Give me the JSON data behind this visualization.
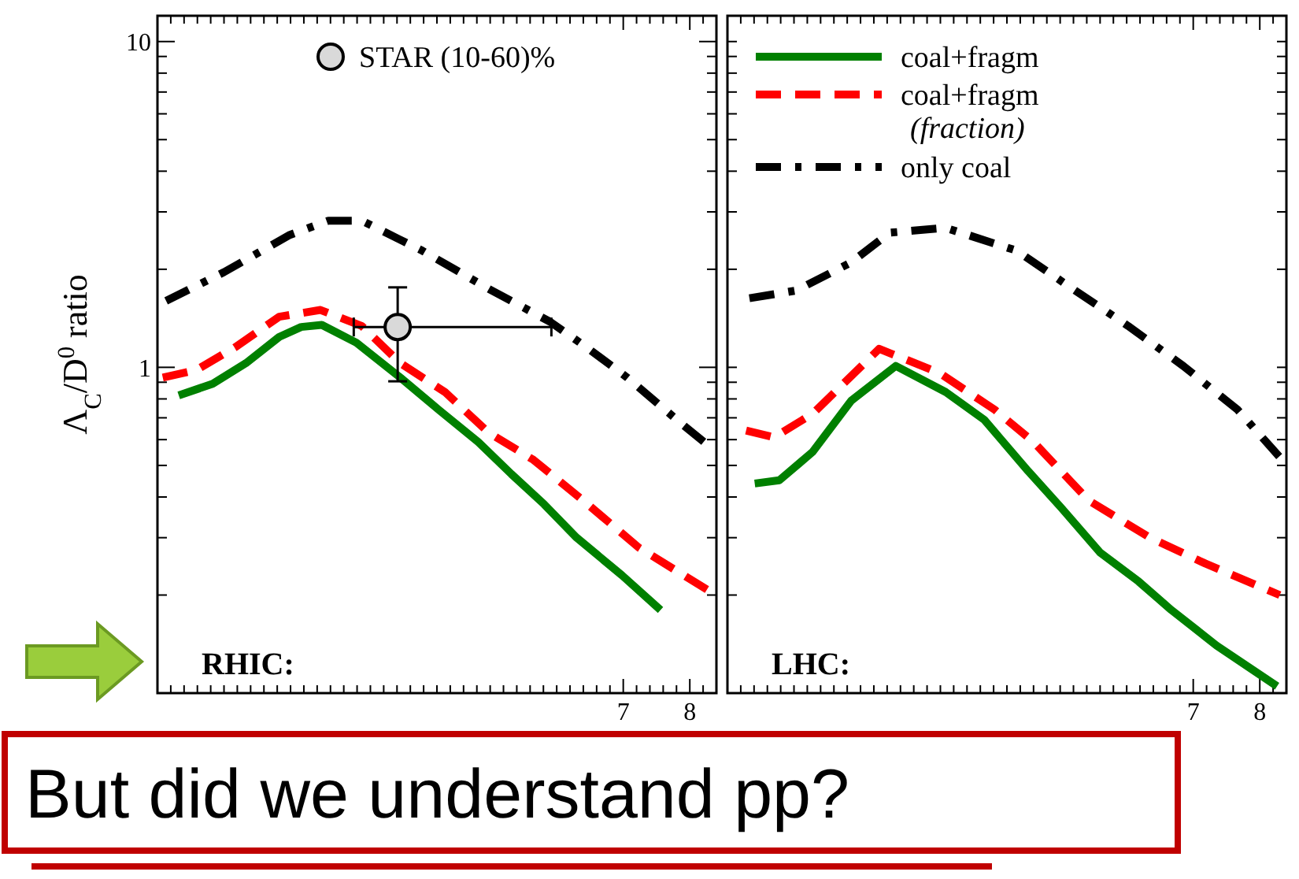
{
  "chart_data": [
    {
      "type": "line",
      "ylabel": "Λ$_{C}$/D$^{0}$ ratio",
      "xlim": [
        0,
        8.4
      ],
      "ylim": [
        0.1,
        12
      ],
      "log": "y",
      "legend": "top",
      "xticks": [
        {
          "value": 0,
          "label": null
        },
        {
          "value": 0.2,
          "label": null
        },
        {
          "value": 0.4,
          "label": null
        },
        {
          "value": 0.6,
          "label": null
        },
        {
          "value": 0.8,
          "label": null
        },
        {
          "value": 1,
          "label": null
        },
        {
          "value": 1.2,
          "label": null
        },
        {
          "value": 1.4,
          "label": null
        },
        {
          "value": 1.6,
          "label": null
        },
        {
          "value": 1.8,
          "label": null
        },
        {
          "value": 2,
          "label": null
        },
        {
          "value": 2.2,
          "label": null
        },
        {
          "value": 2.4,
          "label": null
        },
        {
          "value": 2.6,
          "label": null
        },
        {
          "value": 2.8,
          "label": null
        },
        {
          "value": 3,
          "label": null
        },
        {
          "value": 3.2,
          "label": null
        },
        {
          "value": 3.4,
          "label": null
        },
        {
          "value": 3.6,
          "label": null
        },
        {
          "value": 3.8,
          "label": null
        },
        {
          "value": 4,
          "label": null
        },
        {
          "value": 4.2,
          "label": null
        },
        {
          "value": 4.4,
          "label": null
        },
        {
          "value": 4.6,
          "label": null
        },
        {
          "value": 4.8,
          "label": null
        },
        {
          "value": 5,
          "label": null
        },
        {
          "value": 5.2,
          "label": null
        },
        {
          "value": 5.4,
          "label": null
        },
        {
          "value": 5.6,
          "label": null
        },
        {
          "value": 5.8,
          "label": null
        },
        {
          "value": 6,
          "label": null
        },
        {
          "value": 6.2,
          "label": null
        },
        {
          "value": 6.4,
          "label": null
        },
        {
          "value": 6.6,
          "label": null
        },
        {
          "value": 6.8,
          "label": null
        },
        {
          "value": 7,
          "label": "7"
        },
        {
          "value": 7.2,
          "label": null
        },
        {
          "value": 7.4,
          "label": null
        },
        {
          "value": 7.6,
          "label": null
        },
        {
          "value": 7.8,
          "label": null
        },
        {
          "value": 8,
          "label": "8"
        },
        {
          "value": 8.2,
          "label": null
        }
      ],
      "yticks": [
        {
          "value": 0.1,
          "label": null
        },
        {
          "value": 0.2,
          "label": null
        },
        {
          "value": 0.3,
          "label": null
        },
        {
          "value": 0.4,
          "label": null
        },
        {
          "value": 0.5,
          "label": null
        },
        {
          "value": 0.6,
          "label": null
        },
        {
          "value": 0.7,
          "label": null
        },
        {
          "value": 0.8,
          "label": null
        },
        {
          "value": 0.9,
          "label": null
        },
        1,
        {
          "value": 2,
          "label": null
        },
        {
          "value": 3,
          "label": null
        },
        {
          "value": 4,
          "label": null
        },
        {
          "value": 5,
          "label": null
        },
        {
          "value": 6,
          "label": null
        },
        {
          "value": 7,
          "label": null
        },
        {
          "value": 8,
          "label": null
        },
        {
          "value": 9,
          "label": null
        },
        10
      ],
      "series": [
        {
          "color": "#008000",
          "line_style": "solid",
          "x": [
            0.32,
            0.83,
            1.33,
            1.83,
            2.16,
            2.47,
            2.99,
            3.65,
            4.23,
            4.82,
            5.32,
            5.81,
            6.3,
            6.98,
            7.56
          ],
          "values": [
            0.82,
            0.89,
            1.03,
            1.24,
            1.33,
            1.35,
            1.19,
            0.93,
            0.74,
            0.59,
            0.47,
            0.38,
            0.3,
            0.23,
            0.18
          ]
        },
        {
          "color": "#ff0000",
          "line_style": "dashed",
          "x": [
            0.08,
            0.58,
            1.16,
            1.83,
            2.45,
            3.07,
            3.65,
            4.32,
            4.98,
            5.65,
            6.4,
            7.23,
            8.39
          ],
          "values": [
            0.93,
            0.98,
            1.15,
            1.43,
            1.5,
            1.34,
            1.03,
            0.84,
            0.63,
            0.52,
            0.39,
            0.28,
            0.2
          ]
        },
        {
          "color": "#000000",
          "line_style": "dashdot",
          "x": [
            0.13,
            1.0,
            1.99,
            2.57,
            3.07,
            3.98,
            4.98,
            5.9,
            6.48,
            7.06,
            7.88,
            8.26
          ],
          "values": [
            1.6,
            1.96,
            2.55,
            2.82,
            2.82,
            2.28,
            1.74,
            1.38,
            1.14,
            0.93,
            0.67,
            0.58
          ]
        },
        {
          "type": "scatter",
          "name": "STAR (10-60)%",
          "color": "#d9d9d9",
          "marker": "circle",
          "x": [
            3.61
          ],
          "values": [
            1.33
          ],
          "errors": [
            [
              0.906,
              1.76
            ]
          ],
          "xerrors": [
            [
              2.95,
              5.92
            ]
          ]
        }
      ],
      "annotations": [
        "RHIC:",
        "But did we understand pp?"
      ]
    },
    {
      "type": "line",
      "xlim": [
        0,
        8.4
      ],
      "ylim": [
        0.1,
        12
      ],
      "log": "y",
      "tick_labels": "x",
      "legend": "top left",
      "xticks": [
        {
          "value": 0,
          "label": null
        },
        {
          "value": 0.2,
          "label": null
        },
        {
          "value": 0.4,
          "label": null
        },
        {
          "value": 0.6,
          "label": null
        },
        {
          "value": 0.8,
          "label": null
        },
        {
          "value": 1,
          "label": null
        },
        {
          "value": 1.2,
          "label": null
        },
        {
          "value": 1.4,
          "label": null
        },
        {
          "value": 1.6,
          "label": null
        },
        {
          "value": 1.8,
          "label": null
        },
        {
          "value": 2,
          "label": null
        },
        {
          "value": 2.2,
          "label": null
        },
        {
          "value": 2.4,
          "label": null
        },
        {
          "value": 2.6,
          "label": null
        },
        {
          "value": 2.8,
          "label": null
        },
        {
          "value": 3,
          "label": null
        },
        {
          "value": 3.2,
          "label": null
        },
        {
          "value": 3.4,
          "label": null
        },
        {
          "value": 3.6,
          "label": null
        },
        {
          "value": 3.8,
          "label": null
        },
        {
          "value": 4,
          "label": null
        },
        {
          "value": 4.2,
          "label": null
        },
        {
          "value": 4.4,
          "label": null
        },
        {
          "value": 4.6,
          "label": null
        },
        {
          "value": 4.8,
          "label": null
        },
        {
          "value": 5,
          "label": null
        },
        {
          "value": 5.2,
          "label": null
        },
        {
          "value": 5.4,
          "label": null
        },
        {
          "value": 5.6,
          "label": null
        },
        {
          "value": 5.8,
          "label": null
        },
        {
          "value": 6,
          "label": null
        },
        {
          "value": 6.2,
          "label": null
        },
        {
          "value": 6.4,
          "label": null
        },
        {
          "value": 6.6,
          "label": null
        },
        {
          "value": 6.8,
          "label": null
        },
        7,
        {
          "value": 7.2,
          "label": null
        },
        {
          "value": 7.4,
          "label": null
        },
        {
          "value": 7.6,
          "label": null
        },
        {
          "value": 7.8,
          "label": null
        },
        8,
        {
          "value": 8.2,
          "label": null
        }
      ],
      "yticks": [
        {
          "value": 0.1,
          "label": null
        },
        {
          "value": 0.2,
          "label": null
        },
        {
          "value": 0.3,
          "label": null
        },
        {
          "value": 0.4,
          "label": null
        },
        {
          "value": 0.5,
          "label": null
        },
        {
          "value": 0.6,
          "label": null
        },
        {
          "value": 0.7,
          "label": null
        },
        {
          "value": 0.8,
          "label": null
        },
        {
          "value": 0.9,
          "label": null
        },
        {
          "value": 1,
          "label": null
        },
        {
          "value": 2,
          "label": null
        },
        {
          "value": 3,
          "label": null
        },
        {
          "value": 4,
          "label": null
        },
        {
          "value": 5,
          "label": null
        },
        {
          "value": 6,
          "label": null
        },
        {
          "value": 7,
          "label": null
        },
        {
          "value": 8,
          "label": null
        },
        {
          "value": 9,
          "label": null
        },
        {
          "value": 10,
          "label": null
        }
      ],
      "series": [
        {
          "name": "coal+fragm",
          "color": "#008000",
          "line_style": "solid",
          "x": [
            0.41,
            0.78,
            1.28,
            1.86,
            2.53,
            3.28,
            3.86,
            4.52,
            5.02,
            5.6,
            6.18,
            6.67,
            7.35,
            8.26
          ],
          "values": [
            0.44,
            0.45,
            0.55,
            0.79,
            1.01,
            0.84,
            0.69,
            0.48,
            0.37,
            0.27,
            0.22,
            0.18,
            0.14,
            0.105
          ]
        },
        {
          "name": "coal+fragm\n(fraction)",
          "color": "#ff0000",
          "line_style": "dashed",
          "x": [
            0.28,
            0.7,
            1.28,
            2.28,
            3.19,
            4.02,
            4.6,
            5.43,
            6.35,
            7.18,
            8.3
          ],
          "values": [
            0.64,
            0.61,
            0.72,
            1.14,
            0.96,
            0.74,
            0.59,
            0.39,
            0.3,
            0.25,
            0.2
          ]
        },
        {
          "name": "only coal",
          "color": "#000000",
          "line_style": "dashdot",
          "x": [
            0.33,
            1.03,
            1.86,
            2.44,
            3.28,
            4.35,
            5.19,
            6.02,
            6.85,
            7.67,
            8.3
          ],
          "values": [
            1.63,
            1.72,
            2.1,
            2.59,
            2.68,
            2.28,
            1.74,
            1.34,
            1.01,
            0.74,
            0.53
          ]
        }
      ],
      "annotations": [
        "LHC:"
      ]
    }
  ]
}
